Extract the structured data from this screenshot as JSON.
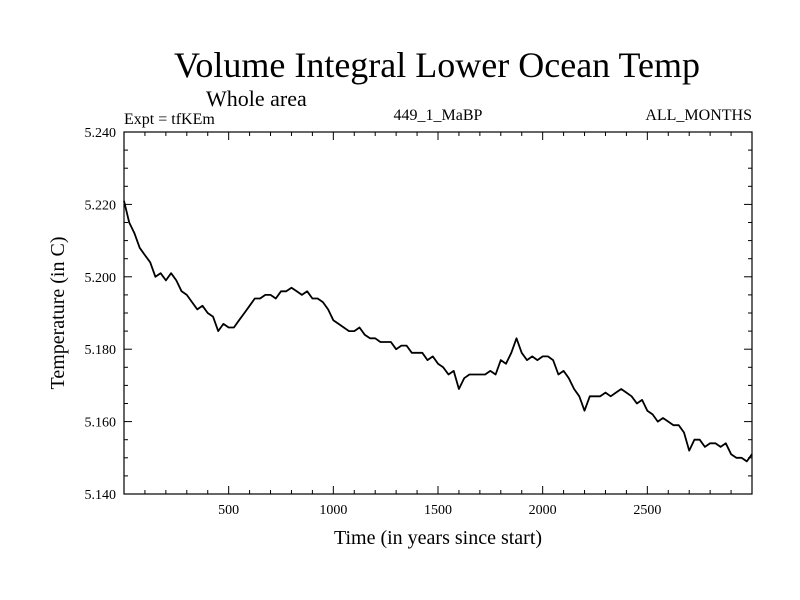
{
  "chart_data": {
    "type": "line",
    "title": "Volume Integral Lower Ocean Temp",
    "subtitle": "Whole area",
    "experiment_label": "Expt = tfKEm",
    "run_label": "449_1_MaBP",
    "months_label": "ALL_MONTHS",
    "xlabel": "Time (in years since start)",
    "ylabel": "Temperature (in C)",
    "xlim": [
      0,
      3000
    ],
    "ylim": [
      5.14,
      5.24
    ],
    "x_ticks": [
      500,
      1000,
      1500,
      2000,
      2500
    ],
    "y_ticks": [
      "5.140",
      "5.160",
      "5.180",
      "5.200",
      "5.220",
      "5.240"
    ],
    "grid": false,
    "legend": "none",
    "line_color": "#000000",
    "series": [
      {
        "x": [
          0,
          25,
          50,
          75,
          100,
          125,
          150,
          175,
          200,
          225,
          250,
          275,
          300,
          325,
          350,
          375,
          400,
          425,
          450,
          475,
          500,
          525,
          550,
          575,
          600,
          625,
          650,
          675,
          700,
          725,
          750,
          775,
          800,
          825,
          850,
          875,
          900,
          925,
          950,
          975,
          1000,
          1025,
          1050,
          1075,
          1100,
          1125,
          1150,
          1175,
          1200,
          1225,
          1250,
          1275,
          1300,
          1325,
          1350,
          1375,
          1400,
          1425,
          1450,
          1475,
          1500,
          1525,
          1550,
          1575,
          1600,
          1625,
          1650,
          1675,
          1700,
          1725,
          1750,
          1775,
          1800,
          1825,
          1850,
          1875,
          1900,
          1925,
          1950,
          1975,
          2000,
          2025,
          2050,
          2075,
          2100,
          2125,
          2150,
          2175,
          2200,
          2225,
          2250,
          2275,
          2300,
          2325,
          2350,
          2375,
          2400,
          2425,
          2450,
          2475,
          2500,
          2525,
          2550,
          2575,
          2600,
          2625,
          2650,
          2675,
          2700,
          2725,
          2750,
          2775,
          2800,
          2825,
          2850,
          2875,
          2900,
          2925,
          2950,
          2975,
          3000
        ],
        "y": [
          5.221,
          5.215,
          5.212,
          5.208,
          5.206,
          5.204,
          5.2,
          5.201,
          5.199,
          5.201,
          5.199,
          5.196,
          5.195,
          5.193,
          5.191,
          5.192,
          5.19,
          5.189,
          5.185,
          5.187,
          5.186,
          5.186,
          5.188,
          5.19,
          5.192,
          5.194,
          5.194,
          5.195,
          5.195,
          5.194,
          5.196,
          5.196,
          5.197,
          5.196,
          5.195,
          5.196,
          5.194,
          5.194,
          5.193,
          5.191,
          5.188,
          5.187,
          5.186,
          5.185,
          5.185,
          5.186,
          5.184,
          5.183,
          5.183,
          5.182,
          5.182,
          5.182,
          5.18,
          5.181,
          5.181,
          5.179,
          5.179,
          5.179,
          5.177,
          5.178,
          5.176,
          5.175,
          5.173,
          5.174,
          5.169,
          5.172,
          5.173,
          5.173,
          5.173,
          5.173,
          5.174,
          5.173,
          5.177,
          5.176,
          5.179,
          5.183,
          5.179,
          5.177,
          5.178,
          5.177,
          5.178,
          5.178,
          5.177,
          5.173,
          5.174,
          5.172,
          5.169,
          5.167,
          5.163,
          5.167,
          5.167,
          5.167,
          5.168,
          5.167,
          5.168,
          5.169,
          5.168,
          5.167,
          5.165,
          5.166,
          5.163,
          5.162,
          5.16,
          5.161,
          5.16,
          5.159,
          5.159,
          5.157,
          5.152,
          5.155,
          5.155,
          5.153,
          5.154,
          5.154,
          5.153,
          5.154,
          5.151,
          5.15,
          5.15,
          5.149,
          5.151
        ]
      }
    ]
  }
}
